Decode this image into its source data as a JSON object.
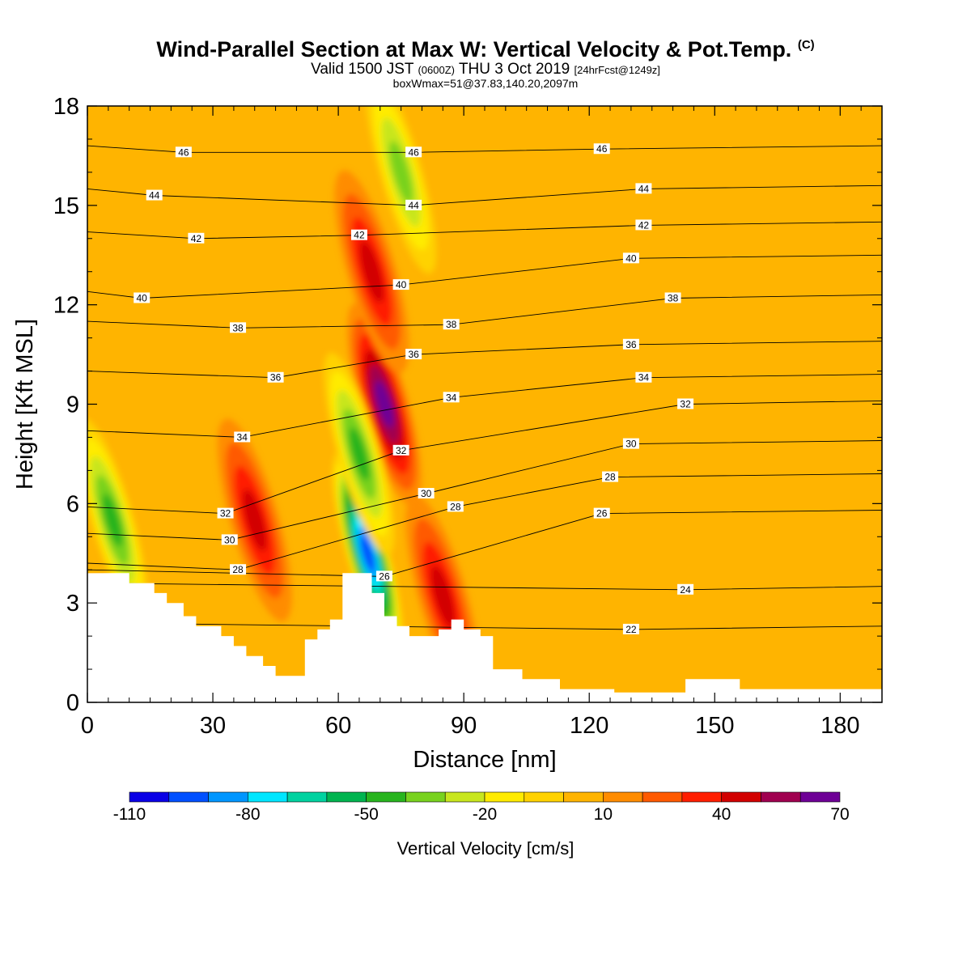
{
  "title": {
    "main": "Wind-Parallel Section at Max W: Vertical Velocity & Pot.Temp.",
    "copyright": "(C)",
    "valid_prefix": "Valid 1500 JST",
    "valid_utc": "(0600Z)",
    "valid_date": "THU 3 Oct 2019",
    "forecast": "[24hrFcst@1249z]",
    "box": "boxWmax=51@37.83,140.20,2097m"
  },
  "colors": {
    "scale": [
      "#0a00e6",
      "#0050ff",
      "#0096ff",
      "#00e6ff",
      "#00d2a0",
      "#00b450",
      "#28b41e",
      "#78d21e",
      "#c8e61e",
      "#ffeb00",
      "#ffd200",
      "#ffb400",
      "#ff8c00",
      "#ff5a00",
      "#ff1e00",
      "#d20000",
      "#a00050",
      "#6e0096"
    ],
    "terrain": "#ffffff",
    "contour": "#000000"
  },
  "chart_data": {
    "type": "heatmap",
    "xlabel": "Distance [nm]",
    "ylabel": "Height [Kft MSL]",
    "xlim": [
      0,
      190
    ],
    "ylim": [
      0,
      18
    ],
    "xticks": [
      "0",
      "30",
      "60",
      "90",
      "120",
      "150",
      "180"
    ],
    "yticks": [
      "0",
      "3",
      "6",
      "9",
      "12",
      "15",
      "18"
    ],
    "colorbar": {
      "label": "Vertical Velocity [cm/s]",
      "ticks": [
        "-110",
        "-80",
        "-50",
        "-20",
        "10",
        "40",
        "70"
      ],
      "range": [
        -110,
        70
      ],
      "step": 10
    },
    "velocity_features": [
      {
        "kind": "updraft",
        "x": 40,
        "y": 5.5,
        "value": 45
      },
      {
        "kind": "updraft",
        "x": 71,
        "y": 9,
        "value": 65
      },
      {
        "kind": "updraft",
        "x": 68,
        "y": 13,
        "value": 45
      },
      {
        "kind": "downdraft",
        "x": 67,
        "y": 4.5,
        "value": -95
      },
      {
        "kind": "downdraft",
        "x": 65,
        "y": 7.5,
        "value": -45
      },
      {
        "kind": "downdraft",
        "x": 6,
        "y": 5.5,
        "value": -40
      },
      {
        "kind": "updraft",
        "x": 85,
        "y": 3.2,
        "value": 40
      },
      {
        "kind": "downdraft",
        "x": 75,
        "y": 16,
        "value": -30
      }
    ],
    "isentropes": [
      {
        "label": "22",
        "x": 130,
        "y": 2.2
      },
      {
        "label": "24",
        "x": 143,
        "y": 3.4
      },
      {
        "label": "26",
        "x": 71,
        "y": 3.8
      },
      {
        "label": "26",
        "x": 123,
        "y": 5.7
      },
      {
        "label": "28",
        "x": 36,
        "y": 4.0
      },
      {
        "label": "28",
        "x": 88,
        "y": 5.9
      },
      {
        "label": "28",
        "x": 125,
        "y": 6.8
      },
      {
        "label": "30",
        "x": 34,
        "y": 4.9
      },
      {
        "label": "30",
        "x": 81,
        "y": 6.3
      },
      {
        "label": "30",
        "x": 130,
        "y": 7.8
      },
      {
        "label": "32",
        "x": 33,
        "y": 5.7
      },
      {
        "label": "32",
        "x": 75,
        "y": 7.6
      },
      {
        "label": "32",
        "x": 143,
        "y": 9.0
      },
      {
        "label": "34",
        "x": 37,
        "y": 8.0
      },
      {
        "label": "34",
        "x": 87,
        "y": 9.2
      },
      {
        "label": "34",
        "x": 133,
        "y": 9.8
      },
      {
        "label": "36",
        "x": 45,
        "y": 9.8
      },
      {
        "label": "36",
        "x": 78,
        "y": 10.5
      },
      {
        "label": "36",
        "x": 130,
        "y": 10.8
      },
      {
        "label": "38",
        "x": 36,
        "y": 11.3
      },
      {
        "label": "38",
        "x": 87,
        "y": 11.4
      },
      {
        "label": "38",
        "x": 140,
        "y": 12.2
      },
      {
        "label": "40",
        "x": 13,
        "y": 12.2
      },
      {
        "label": "40",
        "x": 75,
        "y": 12.6
      },
      {
        "label": "40",
        "x": 130,
        "y": 13.4
      },
      {
        "label": "42",
        "x": 26,
        "y": 14.0
      },
      {
        "label": "42",
        "x": 65,
        "y": 14.1
      },
      {
        "label": "42",
        "x": 133,
        "y": 14.4
      },
      {
        "label": "44",
        "x": 16,
        "y": 15.3
      },
      {
        "label": "44",
        "x": 78,
        "y": 15.0
      },
      {
        "label": "44",
        "x": 133,
        "y": 15.5
      },
      {
        "label": "46",
        "x": 23,
        "y": 16.6
      },
      {
        "label": "46",
        "x": 78,
        "y": 16.6
      },
      {
        "label": "46",
        "x": 123,
        "y": 16.7
      }
    ],
    "terrain": [
      [
        0,
        3.9
      ],
      [
        10,
        3.9
      ],
      [
        10,
        3.6
      ],
      [
        16,
        3.6
      ],
      [
        16,
        3.3
      ],
      [
        19,
        3.3
      ],
      [
        19,
        3.0
      ],
      [
        23,
        3.0
      ],
      [
        23,
        2.6
      ],
      [
        26,
        2.6
      ],
      [
        26,
        2.3
      ],
      [
        32,
        2.3
      ],
      [
        32,
        2.0
      ],
      [
        35,
        2.0
      ],
      [
        35,
        1.7
      ],
      [
        38,
        1.7
      ],
      [
        38,
        1.4
      ],
      [
        42,
        1.4
      ],
      [
        42,
        1.1
      ],
      [
        45,
        1.1
      ],
      [
        45,
        0.8
      ],
      [
        52,
        0.8
      ],
      [
        52,
        1.9
      ],
      [
        55,
        1.9
      ],
      [
        55,
        2.2
      ],
      [
        58,
        2.2
      ],
      [
        58,
        2.5
      ],
      [
        61,
        2.5
      ],
      [
        61,
        3.9
      ],
      [
        68,
        3.9
      ],
      [
        68,
        3.3
      ],
      [
        71,
        3.3
      ],
      [
        71,
        2.6
      ],
      [
        74,
        2.6
      ],
      [
        74,
        2.3
      ],
      [
        77,
        2.3
      ],
      [
        77,
        2.0
      ],
      [
        84,
        2.0
      ],
      [
        84,
        2.2
      ],
      [
        87,
        2.2
      ],
      [
        87,
        2.5
      ],
      [
        90,
        2.5
      ],
      [
        90,
        2.2
      ],
      [
        94,
        2.2
      ],
      [
        94,
        2.0
      ],
      [
        97,
        2.0
      ],
      [
        97,
        1.0
      ],
      [
        104,
        1.0
      ],
      [
        104,
        0.7
      ],
      [
        113,
        0.7
      ],
      [
        113,
        0.4
      ],
      [
        126,
        0.4
      ],
      [
        126,
        0.3
      ],
      [
        143,
        0.3
      ],
      [
        143,
        0.7
      ],
      [
        156,
        0.7
      ],
      [
        156,
        0.4
      ],
      [
        190,
        0.4
      ]
    ]
  }
}
